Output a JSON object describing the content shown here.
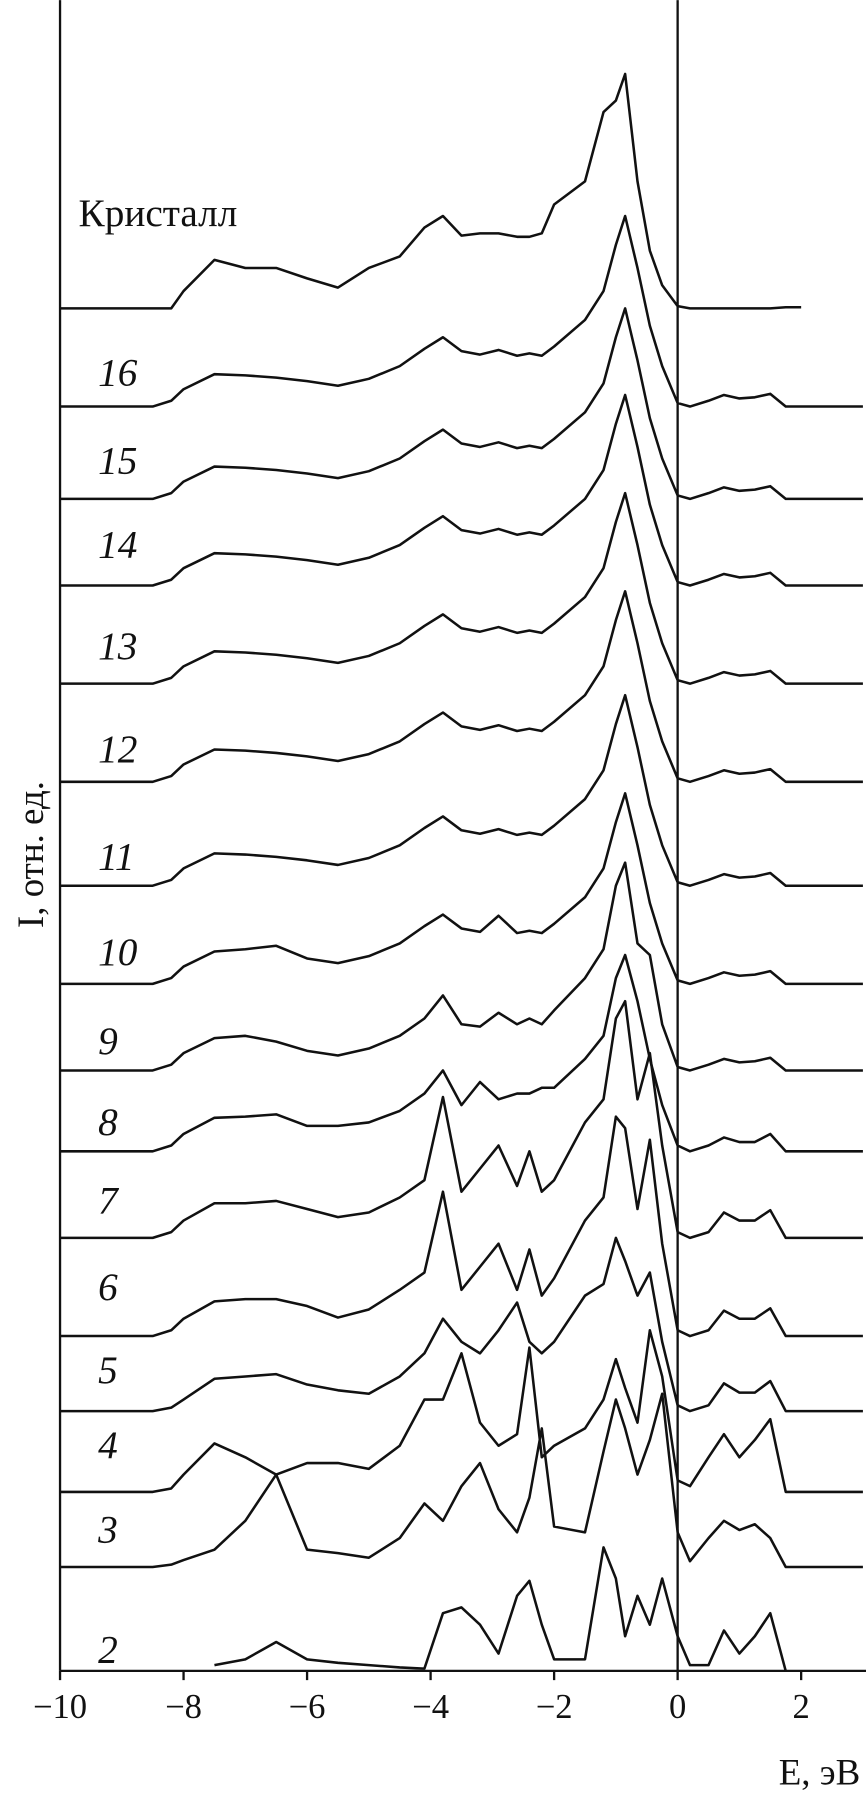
{
  "chart_data": {
    "type": "line",
    "x_label": "E, эВ",
    "y_label": "I, отн. ед.",
    "color": "#111111",
    "xlim": [
      -10,
      3.05
    ],
    "ylim": [
      0,
      144.7
    ],
    "xticks": [
      {
        "value": -10,
        "label": "−10"
      },
      {
        "value": -8,
        "label": "−8"
      },
      {
        "value": -6,
        "label": "−6"
      },
      {
        "value": -4,
        "label": "−4"
      },
      {
        "value": -2,
        "label": "−2"
      },
      0,
      2
    ],
    "x": [
      -10,
      -9,
      -8.5,
      -8.2,
      -8,
      -7.5,
      -7,
      -6.5,
      -6,
      -5.5,
      -5,
      -4.5,
      -4.1,
      -3.8,
      -3.5,
      -3.2,
      -2.9,
      -2.6,
      -2.4,
      -2.2,
      -2,
      -1.5,
      -1.2,
      -1,
      -0.85,
      -0.65,
      -0.45,
      -0.25,
      0,
      0.2,
      0.5,
      0.75,
      1,
      1.25,
      1.5,
      1.75,
      2,
      2.5,
      3
    ],
    "series": [
      {
        "name": "Кристалл",
        "values": [
          118,
          118,
          118,
          118,
          119.5,
          122.2,
          121.5,
          121.5,
          120.6,
          119.8,
          121.5,
          122.5,
          125,
          126,
          124.3,
          124.5,
          124.5,
          124.2,
          124.2,
          124.5,
          127,
          129,
          135,
          136,
          138.3,
          129,
          123,
          120,
          118.2,
          118,
          118,
          118,
          118,
          118,
          118,
          118.1,
          118.1,
          null,
          null
        ]
      },
      {
        "name": "16",
        "values": [
          109.5,
          109.5,
          109.5,
          110,
          111,
          112.3,
          112.2,
          112,
          111.7,
          111.3,
          111.9,
          113,
          114.5,
          115.5,
          114.3,
          114,
          114.4,
          113.9,
          114.1,
          113.9,
          114.7,
          117,
          119.5,
          123.5,
          126,
          121.5,
          116.5,
          113,
          109.8,
          109.5,
          110,
          110.5,
          110.2,
          110.3,
          110.6,
          109.5,
          109.5,
          109.5,
          109.5
        ]
      },
      {
        "name": "15",
        "values": [
          101.5,
          101.5,
          101.5,
          102,
          103,
          104.3,
          104.2,
          104,
          103.7,
          103.3,
          103.9,
          105,
          106.5,
          107.5,
          106.3,
          106,
          106.4,
          105.9,
          106.1,
          105.9,
          106.7,
          109,
          111.5,
          115.5,
          118,
          113.5,
          108.5,
          105,
          101.8,
          101.5,
          102,
          102.5,
          102.2,
          102.3,
          102.6,
          101.5,
          101.5,
          101.5,
          101.5
        ]
      },
      {
        "name": "14",
        "values": [
          94,
          94,
          94,
          94.5,
          95.5,
          96.8,
          96.7,
          96.5,
          96.2,
          95.8,
          96.4,
          97.5,
          99,
          100,
          98.8,
          98.5,
          98.9,
          98.4,
          98.6,
          98.4,
          99.2,
          101.5,
          104,
          108,
          110.5,
          106,
          101,
          97.5,
          94.3,
          94,
          94.5,
          95,
          94.7,
          94.8,
          95.1,
          94,
          94,
          94,
          94
        ]
      },
      {
        "name": "13",
        "values": [
          85.5,
          85.5,
          85.5,
          86,
          87,
          88.3,
          88.2,
          88,
          87.7,
          87.3,
          87.9,
          89,
          90.5,
          91.5,
          90.3,
          90,
          90.4,
          89.9,
          90.1,
          89.9,
          90.7,
          93,
          95.5,
          99.5,
          102,
          97.5,
          92.5,
          89,
          85.8,
          85.5,
          86,
          86.5,
          86.2,
          86.3,
          86.6,
          85.5,
          85.5,
          85.5,
          85.5
        ]
      },
      {
        "name": "12",
        "values": [
          77,
          77,
          77,
          77.5,
          78.5,
          79.8,
          79.7,
          79.5,
          79.2,
          78.8,
          79.4,
          80.5,
          82,
          83,
          81.8,
          81.5,
          81.9,
          81.4,
          81.6,
          81.4,
          82.2,
          84.5,
          87,
          91,
          93.5,
          89,
          84,
          80.5,
          77.3,
          77,
          77.5,
          78,
          77.7,
          77.8,
          78.1,
          77,
          77,
          77,
          77
        ]
      },
      {
        "name": "11",
        "values": [
          68,
          68,
          68,
          68.5,
          69.5,
          70.8,
          70.7,
          70.5,
          70.2,
          69.8,
          70.4,
          71.5,
          73,
          74,
          72.8,
          72.5,
          72.9,
          72.4,
          72.6,
          72.4,
          73.2,
          75.5,
          78,
          82,
          84.5,
          80,
          75,
          71.5,
          68.3,
          68,
          68.5,
          69,
          68.7,
          68.8,
          69.1,
          68,
          68,
          68,
          68
        ]
      },
      {
        "name": "10",
        "values": [
          59.5,
          59.5,
          59.5,
          60,
          61,
          62.3,
          62.5,
          62.8,
          61.7,
          61.3,
          61.9,
          63,
          64.5,
          65.5,
          64.3,
          64,
          65.4,
          63.9,
          64.1,
          63.9,
          64.7,
          67,
          69.5,
          73.5,
          76,
          71.5,
          66.5,
          63,
          59.8,
          59.5,
          60,
          60.5,
          60.2,
          60.3,
          60.6,
          59.5,
          59.5,
          59.5,
          59.5
        ]
      },
      {
        "name": "9",
        "values": [
          52,
          52,
          52,
          52.5,
          53.5,
          54.8,
          55,
          54.5,
          53.7,
          53.3,
          53.9,
          55,
          56.5,
          58.5,
          56,
          55.8,
          57,
          56,
          56.5,
          56,
          57.2,
          60,
          62.5,
          68,
          70,
          63,
          62,
          56,
          52.3,
          52,
          52.5,
          53,
          52.7,
          52.8,
          53.1,
          52,
          52,
          52,
          52
        ]
      },
      {
        "name": "8",
        "values": [
          45,
          45,
          45,
          45.5,
          46.5,
          47.9,
          48,
          48.2,
          47.2,
          47.2,
          47.5,
          48.5,
          50,
          52,
          49,
          51,
          49.5,
          50,
          50,
          50.5,
          50.5,
          53,
          55,
          60,
          62,
          58,
          53,
          49,
          45.5,
          45,
          45.5,
          46.2,
          45.8,
          45.8,
          46.5,
          45,
          45,
          45,
          45
        ]
      },
      {
        "name": "7",
        "values": [
          37.5,
          37.5,
          37.5,
          38,
          39,
          40.5,
          40.5,
          40.7,
          40,
          39.3,
          39.7,
          41,
          42.5,
          49.7,
          41.5,
          43.5,
          45.5,
          42,
          45,
          41.5,
          42.5,
          47.5,
          49.5,
          56.5,
          58,
          49.5,
          53.5,
          45.5,
          38,
          37.5,
          38,
          39.7,
          39,
          39,
          39.9,
          37.5,
          37.5,
          37.5,
          37.5
        ]
      },
      {
        "name": "6",
        "values": [
          29,
          29,
          29,
          29.5,
          30.5,
          32,
          32.2,
          32.2,
          31.6,
          30.6,
          31.3,
          33,
          34.5,
          41.5,
          33,
          35,
          37,
          33,
          36.5,
          32.5,
          34,
          39,
          41,
          48,
          47,
          40,
          46,
          37,
          29.5,
          29,
          29.5,
          31.2,
          30.5,
          30.5,
          31.4,
          29,
          29,
          29,
          29
        ]
      },
      {
        "name": "5",
        "values": [
          22.5,
          22.5,
          22.5,
          22.8,
          23.5,
          25.3,
          25.5,
          25.7,
          24.8,
          24.3,
          24,
          25.5,
          27.5,
          30.5,
          28.5,
          27.5,
          29.5,
          31.9,
          28.5,
          27.5,
          28.5,
          32.5,
          33.5,
          37.5,
          35.5,
          32.5,
          34.5,
          28.5,
          23,
          22.5,
          23,
          24.9,
          24.1,
          24.1,
          25.1,
          22.5,
          22.5,
          22.5,
          22.5
        ]
      },
      {
        "name": "4",
        "values": [
          15.5,
          15.5,
          15.5,
          15.8,
          17,
          19.7,
          18.5,
          17,
          18,
          18,
          17.5,
          19.5,
          23.5,
          23.5,
          27.5,
          21.5,
          19.5,
          20.5,
          28,
          18.5,
          19.5,
          21,
          23.5,
          27,
          24.5,
          21.5,
          29.5,
          25.5,
          16.5,
          16,
          18.5,
          20.5,
          18.5,
          20,
          21.8,
          15.5,
          15.5,
          15.5,
          15.5
        ]
      },
      {
        "name": "3",
        "values": [
          9,
          9,
          9,
          9.2,
          9.6,
          10.5,
          13,
          17,
          10.5,
          10.2,
          9.8,
          11.5,
          14.5,
          13,
          16,
          18,
          14,
          12,
          15,
          21,
          12.5,
          12,
          19,
          23.5,
          21,
          17,
          20,
          24,
          12,
          9.5,
          11.5,
          13,
          12.2,
          12.7,
          11.5,
          9,
          9,
          9,
          9
        ]
      },
      {
        "name": "2",
        "values": [
          null,
          null,
          null,
          null,
          null,
          0.5,
          1,
          2.5,
          1,
          0.7,
          0.5,
          0.3,
          0.2,
          5,
          5.5,
          4,
          1.5,
          6.5,
          7.8,
          4,
          1,
          1,
          10.7,
          8,
          3,
          6.5,
          4,
          8,
          3,
          0.5,
          0.5,
          3.5,
          1.5,
          3,
          5,
          0,
          null,
          null,
          null
        ]
      }
    ]
  }
}
